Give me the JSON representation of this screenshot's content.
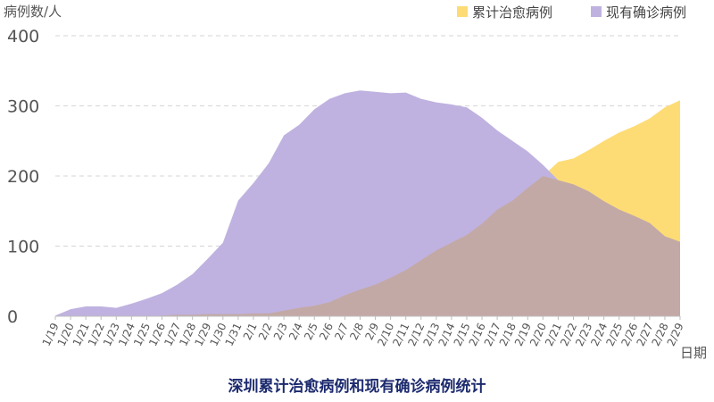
{
  "chart_data": {
    "type": "area",
    "title": "深圳累计治愈病例和现有确诊病例统计",
    "ylabel": "病例数/人",
    "xlabel": "日期",
    "ylim": [
      0,
      400
    ],
    "yticks": [
      0,
      100,
      200,
      300,
      400
    ],
    "grid": true,
    "legend_position": "top-right",
    "categories": [
      "1/19",
      "1/20",
      "1/21",
      "1/22",
      "1/23",
      "1/24",
      "1/25",
      "1/26",
      "1/27",
      "1/28",
      "1/29",
      "1/30",
      "1/31",
      "2/1",
      "2/2",
      "2/3",
      "2/4",
      "2/5",
      "2/6",
      "2/7",
      "2/8",
      "2/9",
      "2/10",
      "2/11",
      "2/12",
      "2/13",
      "2/14",
      "2/15",
      "2/16",
      "2/17",
      "2/18",
      "2/19",
      "2/20",
      "2/21",
      "2/22",
      "2/23",
      "2/24",
      "2/25",
      "2/26",
      "2/27",
      "2/28",
      "2/29"
    ],
    "series": [
      {
        "name": "累计治愈病例",
        "color": "#fddc76",
        "values": [
          0,
          0,
          0,
          0,
          0,
          0,
          0,
          1,
          2,
          2,
          3,
          3,
          3,
          4,
          4,
          8,
          12,
          15,
          20,
          30,
          38,
          45,
          55,
          66,
          80,
          94,
          105,
          116,
          132,
          152,
          165,
          183,
          200,
          220,
          225,
          237,
          250,
          262,
          271,
          282,
          298,
          308
        ]
      },
      {
        "name": "现有确诊病例",
        "color": "#bfb2e0",
        "values": [
          1,
          10,
          14,
          14,
          12,
          18,
          25,
          33,
          45,
          60,
          82,
          105,
          165,
          190,
          218,
          258,
          273,
          295,
          310,
          318,
          322,
          320,
          318,
          319,
          310,
          305,
          302,
          298,
          283,
          265,
          250,
          235,
          216,
          194,
          188,
          178,
          164,
          152,
          143,
          133,
          114,
          106
        ]
      }
    ],
    "overlap_color": "#c3a9a5"
  }
}
